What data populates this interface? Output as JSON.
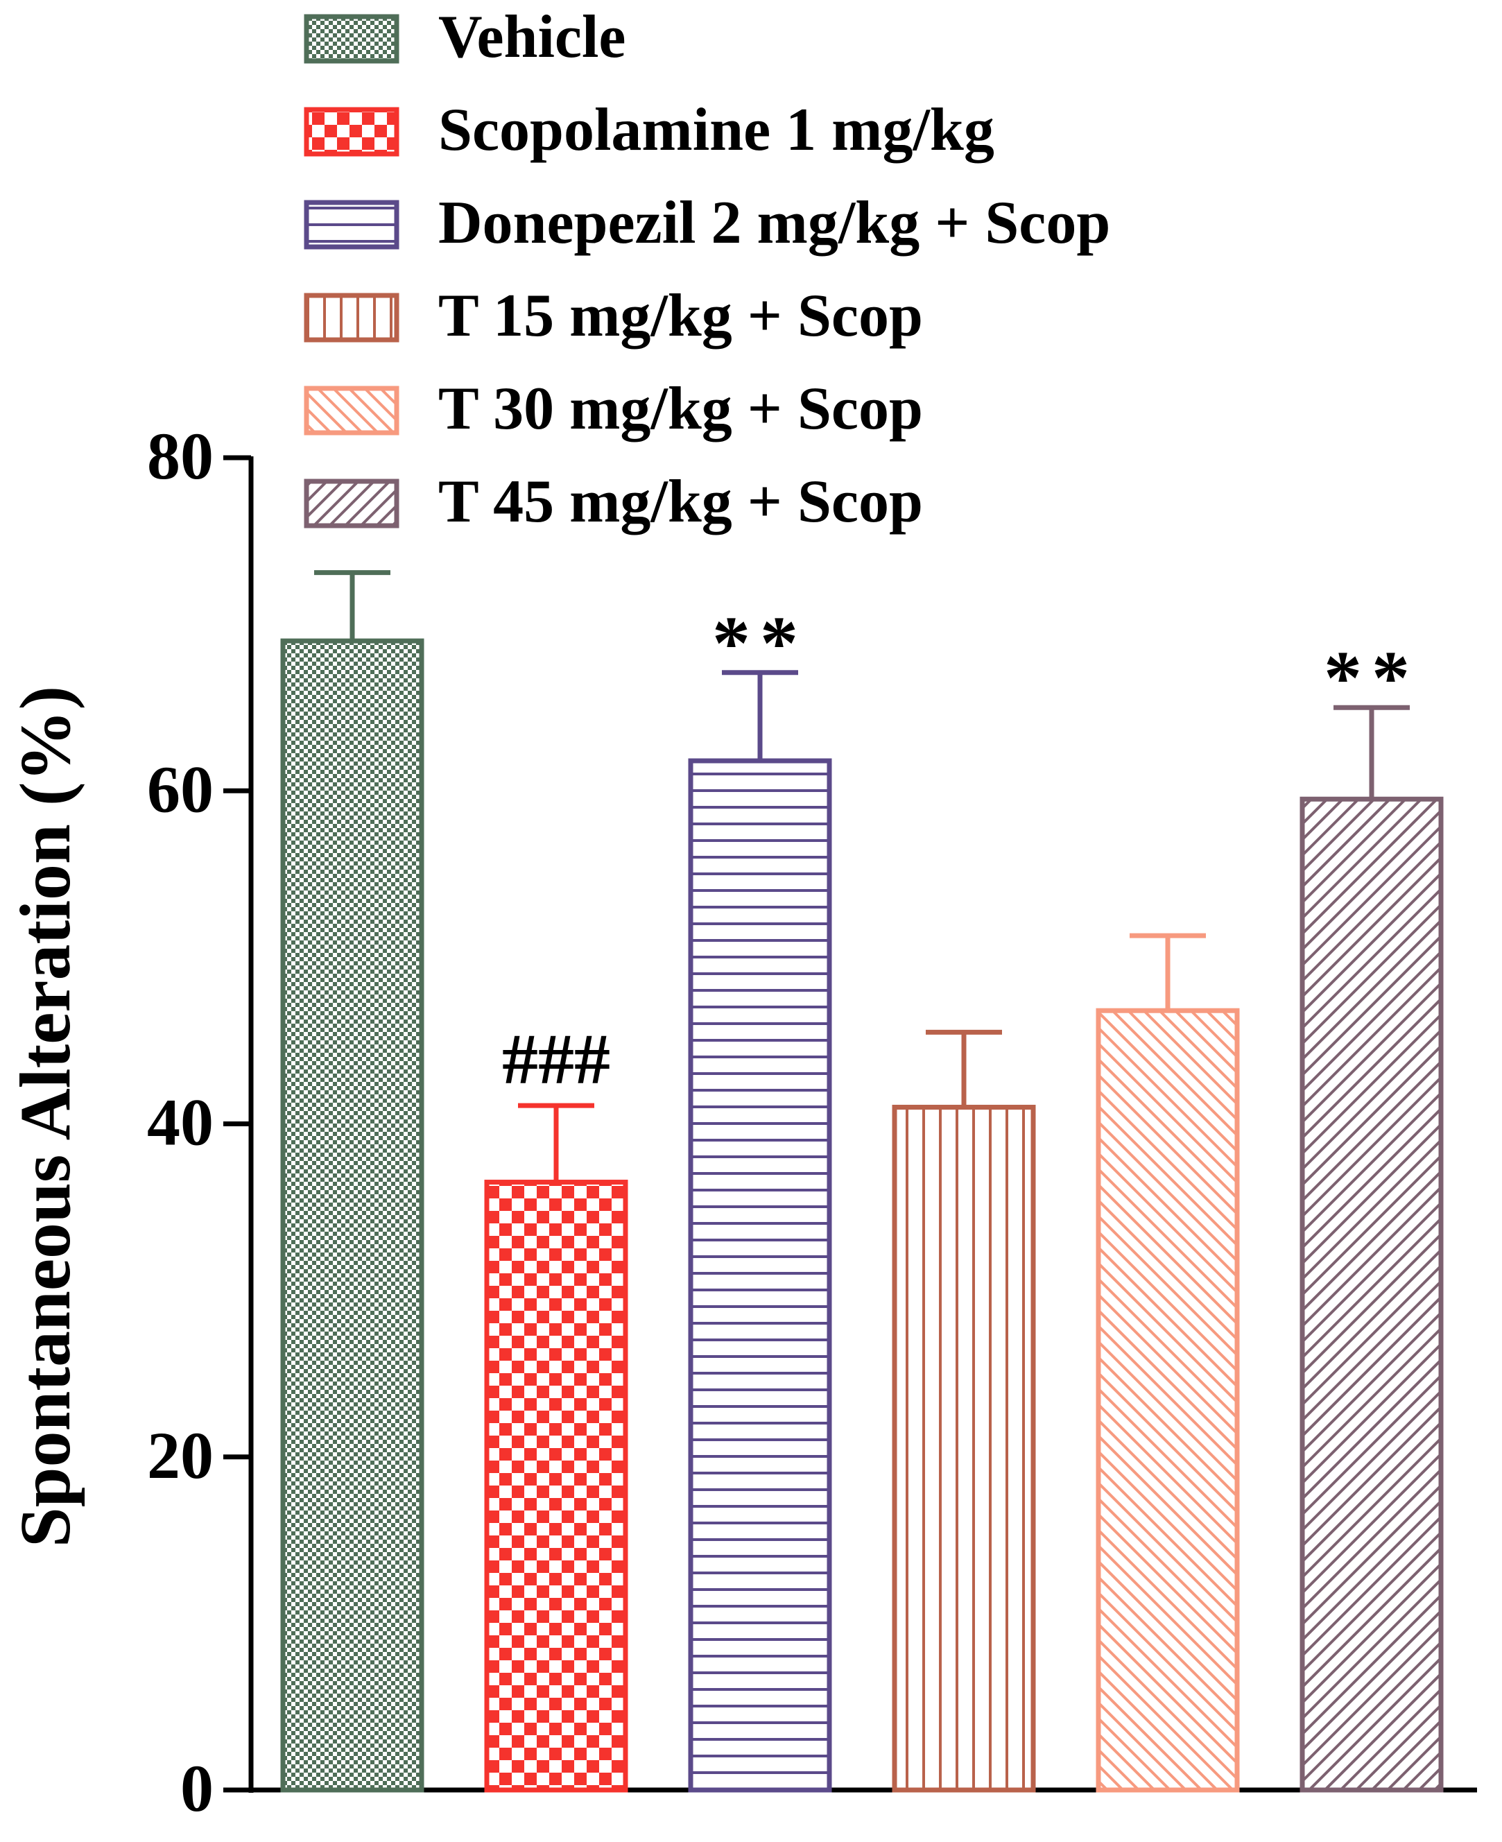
{
  "chart_data": {
    "type": "bar",
    "title": "",
    "xlabel": "",
    "ylabel": "Spontaneous Alteration (%)",
    "ylim": [
      0,
      80
    ],
    "yticks": [
      0,
      20,
      40,
      60,
      80
    ],
    "grid": false,
    "legend_position": "top",
    "categories": [
      "Vehicle",
      "Scopolamine 1 mg/kg",
      "Donepezil 2 mg/kg + Scop",
      "T 15 mg/kg + Scop",
      "T 30 mg/kg + Scop",
      "T 45 mg/kg + Scop"
    ],
    "values": [
      69,
      36.5,
      61.8,
      41,
      46.8,
      59.5
    ],
    "errors": [
      4.1,
      4.6,
      5.3,
      4.5,
      4.5,
      5.5
    ],
    "annotations": [
      "",
      "###",
      "**",
      "",
      "",
      "**"
    ],
    "colors": [
      "#4f6e58",
      "#f5332d",
      "#5b4a8a",
      "#b9624b",
      "#f79a7f",
      "#7d6170"
    ],
    "patterns": [
      "checker-fine",
      "checker-large",
      "horizontal-lines",
      "vertical-lines",
      "diagonal-forward",
      "diagonal-back"
    ]
  }
}
